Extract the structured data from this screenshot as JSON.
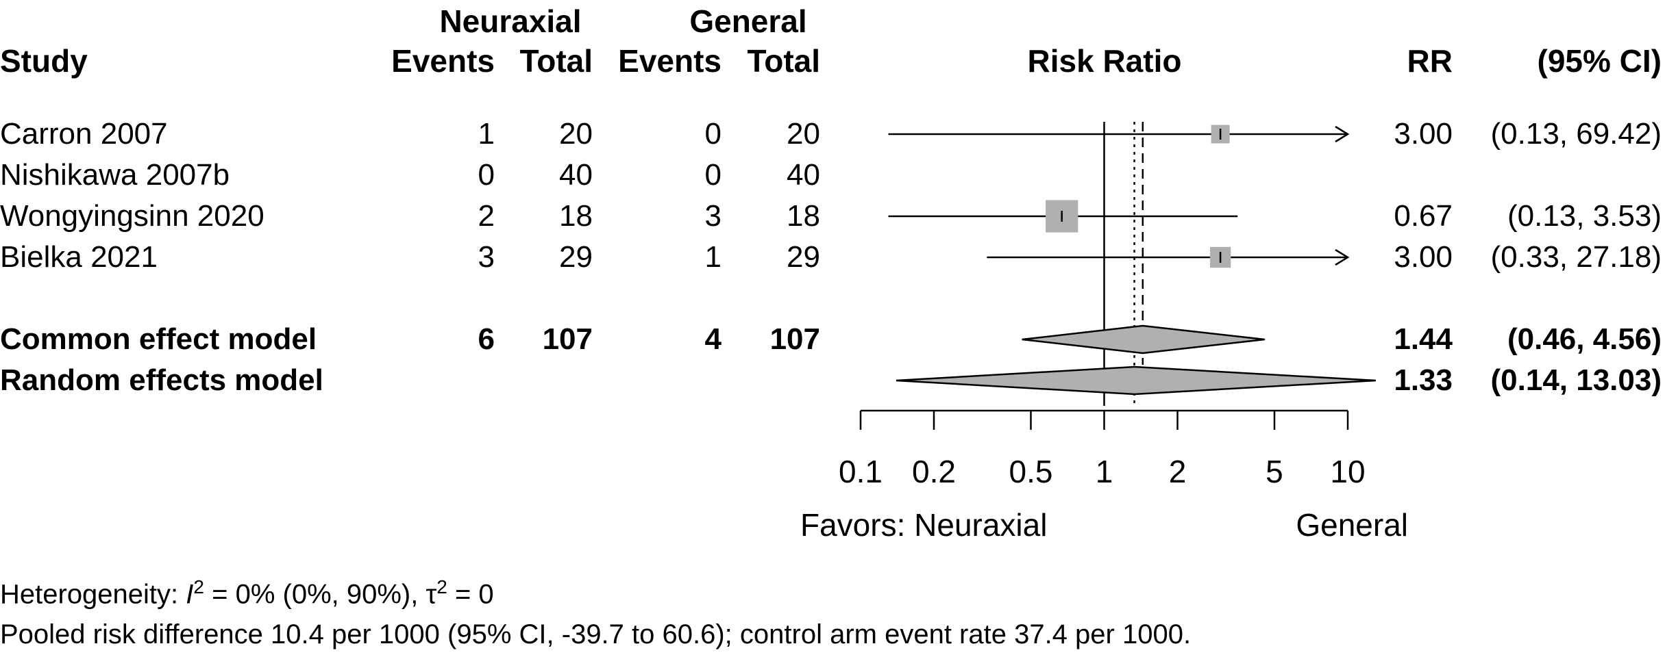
{
  "headers": {
    "group1": "Neuraxial",
    "group2": "General",
    "study": "Study",
    "events1": "Events",
    "total1": "Total",
    "events2": "Events",
    "total2": "Total",
    "plot": "Risk Ratio",
    "rr": "RR",
    "ci": "(95% CI)"
  },
  "favors": {
    "left": "Favors: Neuraxial",
    "right": "General"
  },
  "footer": {
    "het_prefix": "Heterogeneity: ",
    "het_I": "I",
    "het_sup": "2",
    "het_mid": " = 0% (0%, 90%), τ",
    "het_tau_sup": "2",
    "het_end": " = 0",
    "pooled": "Pooled risk difference 10.4 per 1000 (95% CI, -39.7 to 60.6); control arm event rate 37.4 per 1000."
  },
  "chart_data": {
    "type": "forest",
    "x_scale": "log",
    "xlim": [
      0.1,
      10
    ],
    "ticks": [
      0.1,
      0.2,
      0.5,
      1,
      2,
      5,
      10
    ],
    "tick_labels": [
      "0.1",
      "0.2",
      "0.5",
      "1",
      "2",
      "5",
      "10"
    ],
    "null_line": 1,
    "common_line": 1.44,
    "random_line": 1.33,
    "studies": [
      {
        "name": "Carron 2007",
        "e1": "1",
        "n1": "20",
        "e2": "0",
        "n2": "20",
        "rr": 3.0,
        "lo": 0.13,
        "hi": 69.42,
        "rr_text": "3.00",
        "ci_text": "(0.13, 69.42)",
        "weight": 0.12
      },
      {
        "name": "Nishikawa 2007b",
        "e1": "0",
        "n1": "40",
        "e2": "0",
        "n2": "40",
        "rr": null,
        "lo": null,
        "hi": null,
        "rr_text": "",
        "ci_text": "",
        "weight": 0
      },
      {
        "name": "Wongyingsinn 2020",
        "e1": "2",
        "n1": "18",
        "e2": "3",
        "n2": "18",
        "rr": 0.67,
        "lo": 0.13,
        "hi": 3.53,
        "rr_text": "0.67",
        "ci_text": "(0.13,  3.53)",
        "weight": 0.6
      },
      {
        "name": "Bielka 2021",
        "e1": "3",
        "n1": "29",
        "e2": "1",
        "n2": "29",
        "rr": 3.0,
        "lo": 0.33,
        "hi": 27.18,
        "rr_text": "3.00",
        "ci_text": "(0.33, 27.18)",
        "weight": 0.2
      }
    ],
    "pooled": [
      {
        "name": "Common effect model",
        "e1": "6",
        "n1": "107",
        "e2": "4",
        "n2": "107",
        "rr": 1.44,
        "lo": 0.46,
        "hi": 4.56,
        "rr_text": "1.44",
        "ci_text": "(0.46,  4.56)"
      },
      {
        "name": "Random effects model",
        "e1": "",
        "n1": "",
        "e2": "",
        "n2": "",
        "rr": 1.33,
        "lo": 0.14,
        "hi": 13.03,
        "rr_text": "1.33",
        "ci_text": "(0.14, 13.03)"
      }
    ]
  }
}
